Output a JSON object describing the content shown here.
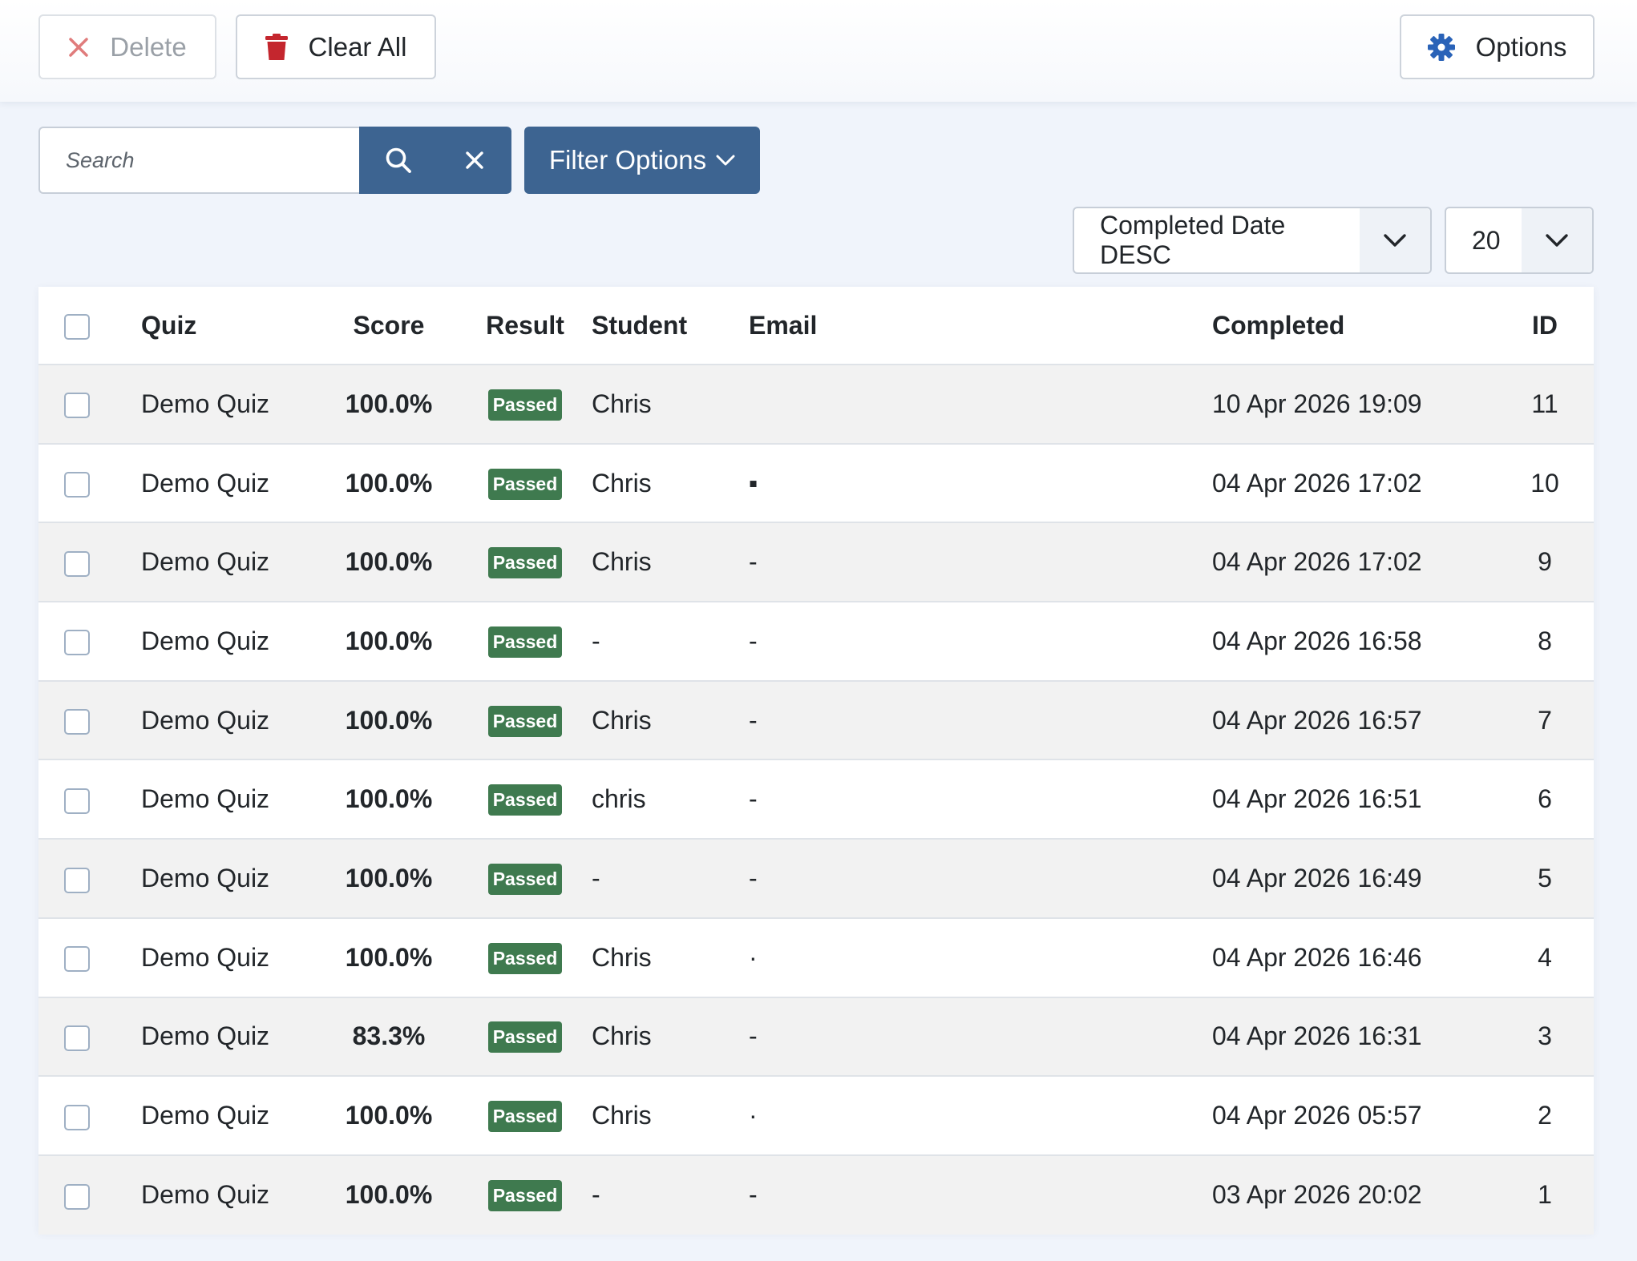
{
  "toolbar": {
    "delete_label": "Delete",
    "clear_all_label": "Clear All",
    "options_label": "Options"
  },
  "search": {
    "placeholder": "Search",
    "value": ""
  },
  "filter": {
    "label": "Filter Options"
  },
  "sort": {
    "selected": "Completed Date DESC"
  },
  "limit": {
    "selected": "20"
  },
  "table": {
    "headers": {
      "quiz": "Quiz",
      "score": "Score",
      "result": "Result",
      "student": "Student",
      "email": "Email",
      "completed": "Completed",
      "id": "ID"
    },
    "rows": [
      {
        "quiz": "Demo Quiz",
        "score": "100.0%",
        "result": "Passed",
        "student": "Chris",
        "email": "",
        "completed": "10 Apr 2026 19:09",
        "id": "11"
      },
      {
        "quiz": "Demo Quiz",
        "score": "100.0%",
        "result": "Passed",
        "student": "Chris",
        "email": "▪",
        "completed": "04 Apr 2026 17:02",
        "id": "10"
      },
      {
        "quiz": "Demo Quiz",
        "score": "100.0%",
        "result": "Passed",
        "student": "Chris",
        "email": "-",
        "completed": "04 Apr 2026 17:02",
        "id": "9"
      },
      {
        "quiz": "Demo Quiz",
        "score": "100.0%",
        "result": "Passed",
        "student": "-",
        "email": "-",
        "completed": "04 Apr 2026 16:58",
        "id": "8"
      },
      {
        "quiz": "Demo Quiz",
        "score": "100.0%",
        "result": "Passed",
        "student": "Chris",
        "email": "-",
        "completed": "04 Apr 2026 16:57",
        "id": "7"
      },
      {
        "quiz": "Demo Quiz",
        "score": "100.0%",
        "result": "Passed",
        "student": "chris",
        "email": "-",
        "completed": "04 Apr 2026 16:51",
        "id": "6"
      },
      {
        "quiz": "Demo Quiz",
        "score": "100.0%",
        "result": "Passed",
        "student": "-",
        "email": "-",
        "completed": "04 Apr 2026 16:49",
        "id": "5"
      },
      {
        "quiz": "Demo Quiz",
        "score": "100.0%",
        "result": "Passed",
        "student": "Chris",
        "email": "·",
        "completed": "04 Apr 2026 16:46",
        "id": "4"
      },
      {
        "quiz": "Demo Quiz",
        "score": "83.3%",
        "result": "Passed",
        "student": "Chris",
        "email": "-",
        "completed": "04 Apr 2026 16:31",
        "id": "3"
      },
      {
        "quiz": "Demo Quiz",
        "score": "100.0%",
        "result": "Passed",
        "student": "Chris",
        "email": "·",
        "completed": "04 Apr 2026 05:57",
        "id": "2"
      },
      {
        "quiz": "Demo Quiz",
        "score": "100.0%",
        "result": "Passed",
        "student": "-",
        "email": "-",
        "completed": "03 Apr 2026 20:02",
        "id": "1"
      }
    ]
  },
  "icons": {
    "delete": "close-icon",
    "clear_all": "trash-icon",
    "options": "gear-icon",
    "search": "search-icon",
    "clear_search": "close-icon",
    "filter_caret": "chevron-down-icon",
    "select_caret": "chevron-down-icon"
  },
  "colors": {
    "primary": "#3d6491",
    "success_badge": "#3f7a4f",
    "danger": "#c4262e",
    "delete_icon": "#e07c7c",
    "gear": "#2a63b8"
  }
}
